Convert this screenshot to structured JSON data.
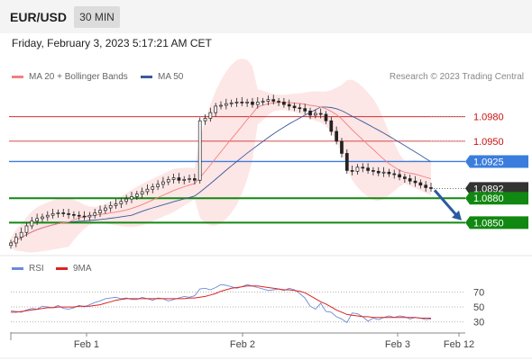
{
  "header": {
    "pair": "EUR/USD",
    "timeframe": "30 MIN",
    "datetime": "Friday, February 3, 2023 5:17:21 AM CET"
  },
  "legend": {
    "ma20_label": "MA 20 + Bollinger Bands",
    "ma50_label": "MA 50",
    "copyright": "Research © 2023 Trading Central"
  },
  "rsi_legend": {
    "rsi_label": "RSI",
    "ma_label": "9MA"
  },
  "colors": {
    "ma20": "#f08080",
    "ma50": "#3a5a9a",
    "bands": "#fde3e3",
    "up": "#ffffff",
    "down": "#222222",
    "resistance": "#cc1111",
    "pivot": "#3b7ddd",
    "support": "#118811",
    "rsi": "#6b8bd6",
    "rsi_ma": "#dd2222",
    "arrow": "#2a5aa0"
  },
  "chart_data": [
    {
      "type": "candlestick",
      "title": "EUR/USD 30 MIN",
      "x_ticks": [
        "Feb 1",
        "Feb 2",
        "Feb 3",
        "Feb 12"
      ],
      "ylim": [
        1.0825,
        1.1015
      ],
      "close_series": [
        1.0825,
        1.0832,
        1.0838,
        1.0846,
        1.0852,
        1.0855,
        1.0857,
        1.0859,
        1.0861,
        1.0862,
        1.0861,
        1.086,
        1.0859,
        1.0858,
        1.0857,
        1.0859,
        1.0862,
        1.0865,
        1.0868,
        1.0871,
        1.0873,
        1.0876,
        1.0879,
        1.0882,
        1.0885,
        1.0888,
        1.0891,
        1.0894,
        1.0897,
        1.09,
        1.0903,
        1.0905,
        1.0902,
        1.0903,
        1.0904,
        1.0902,
        1.0975,
        1.0978,
        1.0985,
        1.0993,
        1.0994,
        1.0996,
        1.0997,
        1.0998,
        1.0997,
        1.0998,
        1.0995,
        1.0998,
        1.0999,
        1.1001,
        1.0999,
        1.0998,
        1.0995,
        1.0993,
        1.0991,
        1.099,
        1.0987,
        1.0982,
        1.0984,
        1.0983,
        1.0975,
        1.0962,
        1.095,
        1.0935,
        1.0914,
        1.0913,
        1.0918,
        1.0917,
        1.0914,
        1.0913,
        1.0911,
        1.0912,
        1.091,
        1.0909,
        1.0906,
        1.0904,
        1.0901,
        1.0899,
        1.0896,
        1.0893,
        1.0892
      ],
      "price_labels": [
        {
          "value": 1.098,
          "label": "1.0980",
          "kind": "resistance"
        },
        {
          "value": 1.095,
          "label": "1.0950",
          "kind": "resistance"
        },
        {
          "value": 1.0925,
          "label": "1.0925",
          "kind": "pivot"
        },
        {
          "value": 1.0892,
          "label": "1.0892",
          "kind": "last"
        },
        {
          "value": 1.088,
          "label": "1.0880",
          "kind": "support"
        },
        {
          "value": 1.085,
          "label": "1.0850",
          "kind": "support"
        }
      ],
      "series": [
        {
          "name": "MA 20 + Bollinger Bands"
        },
        {
          "name": "MA 50"
        }
      ]
    },
    {
      "type": "line",
      "ylim": [
        20,
        85
      ],
      "y_ticks": [
        70,
        50,
        30
      ],
      "series": [
        {
          "name": "RSI",
          "values": [
            45,
            44,
            43,
            46,
            48,
            47,
            51,
            50,
            49,
            52,
            48,
            47,
            49,
            52,
            50,
            53,
            56,
            58,
            61,
            62,
            63,
            61,
            62,
            60,
            60,
            63,
            61,
            59,
            62,
            61,
            58,
            60,
            62,
            64,
            63,
            65,
            74,
            75,
            73,
            76,
            80,
            79,
            77,
            75,
            77,
            80,
            78,
            76,
            74,
            72,
            73,
            74,
            72,
            75,
            73,
            68,
            62,
            51,
            47,
            55,
            44,
            43,
            37,
            34,
            29,
            42,
            41,
            37,
            31,
            35,
            33,
            36,
            38,
            36,
            38,
            37,
            34,
            36,
            35,
            33,
            34
          ]
        },
        {
          "name": "9MA",
          "values": [
            43,
            43,
            44,
            45,
            46,
            47,
            48,
            49,
            49,
            50,
            50,
            50,
            50,
            51,
            51,
            51,
            52,
            53,
            55,
            57,
            59,
            60,
            61,
            61,
            61,
            61,
            61,
            61,
            61,
            61,
            61,
            61,
            61,
            61,
            62,
            62,
            63,
            64,
            66,
            68,
            71,
            73,
            75,
            76,
            77,
            78,
            78,
            78,
            77,
            76,
            75,
            74,
            73,
            73,
            72,
            71,
            69,
            65,
            61,
            57,
            54,
            50,
            46,
            43,
            40,
            39,
            38,
            37,
            37,
            36,
            36,
            36,
            36,
            36,
            36,
            36,
            36,
            36,
            35,
            35,
            35
          ]
        }
      ]
    }
  ]
}
